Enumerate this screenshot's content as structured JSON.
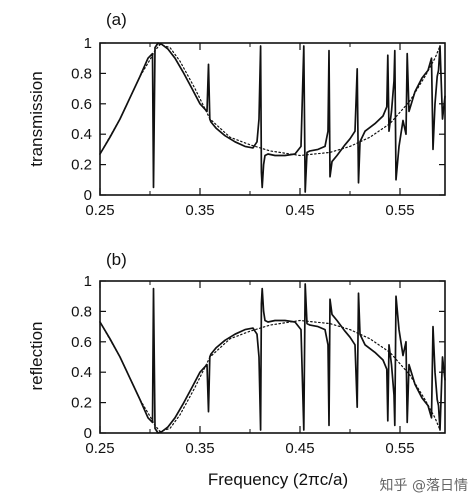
{
  "watermark": "知乎 @落日情",
  "chart_data": [
    {
      "type": "line",
      "panel_label": "(a)",
      "ylabel": "transmission",
      "xlabel": "",
      "xlim": [
        0.25,
        0.595
      ],
      "ylim": [
        0,
        1
      ],
      "xticks": [
        "0.25",
        "0.35",
        "0.45",
        "0.55"
      ],
      "yticks": [
        "0",
        "0.2",
        "0.4",
        "0.6",
        "0.8",
        "1"
      ],
      "grid": false,
      "series": [
        {
          "style": "solid",
          "x": [
            0.25,
            0.26,
            0.27,
            0.28,
            0.29,
            0.298,
            0.3025,
            0.3035,
            0.305,
            0.308,
            0.312,
            0.318,
            0.325,
            0.333,
            0.342,
            0.35,
            0.357,
            0.3585,
            0.3598,
            0.361,
            0.366,
            0.375,
            0.385,
            0.395,
            0.403,
            0.407,
            0.409,
            0.4106,
            0.4114,
            0.4122,
            0.4136,
            0.415,
            0.418,
            0.425,
            0.435,
            0.445,
            0.451,
            0.4538,
            0.4552,
            0.457,
            0.46,
            0.468,
            0.475,
            0.478,
            0.479,
            0.48,
            0.482,
            0.487,
            0.495,
            0.5,
            0.505,
            0.5072,
            0.5085,
            0.51,
            0.515,
            0.525,
            0.533,
            0.5368,
            0.5378,
            0.539,
            0.5415,
            0.544,
            0.5448,
            0.546,
            0.549,
            0.553,
            0.556,
            0.5572,
            0.559,
            0.565,
            0.572,
            0.578,
            0.5815,
            0.583,
            0.585,
            0.5872,
            0.5885,
            0.59,
            0.5925,
            0.595
          ],
          "y": [
            0.27,
            0.38,
            0.5,
            0.64,
            0.78,
            0.9,
            0.93,
            0.05,
            0.97,
            1.0,
            0.99,
            0.96,
            0.9,
            0.81,
            0.7,
            0.6,
            0.55,
            0.86,
            0.5,
            0.48,
            0.44,
            0.39,
            0.35,
            0.32,
            0.31,
            0.35,
            0.5,
            0.98,
            0.15,
            0.05,
            0.2,
            0.26,
            0.27,
            0.26,
            0.26,
            0.27,
            0.32,
            0.98,
            0.02,
            0.28,
            0.29,
            0.3,
            0.32,
            0.42,
            0.95,
            0.12,
            0.22,
            0.26,
            0.33,
            0.37,
            0.42,
            0.83,
            0.08,
            0.35,
            0.42,
            0.47,
            0.52,
            0.58,
            0.92,
            0.42,
            0.55,
            0.75,
            0.95,
            0.1,
            0.32,
            0.49,
            0.4,
            0.93,
            0.55,
            0.68,
            0.77,
            0.82,
            0.9,
            0.3,
            0.6,
            0.78,
            0.82,
            0.98,
            0.5,
            0.65
          ]
        },
        {
          "style": "dotted",
          "x": [
            0.25,
            0.27,
            0.29,
            0.3,
            0.305,
            0.31,
            0.32,
            0.33,
            0.345,
            0.36,
            0.38,
            0.4,
            0.42,
            0.45,
            0.48,
            0.5,
            0.52,
            0.54,
            0.56,
            0.575,
            0.585,
            0.59
          ],
          "y": [
            0.27,
            0.5,
            0.78,
            0.89,
            0.95,
            0.99,
            0.97,
            0.88,
            0.7,
            0.5,
            0.38,
            0.33,
            0.29,
            0.26,
            0.28,
            0.32,
            0.38,
            0.47,
            0.62,
            0.78,
            0.9,
            0.98
          ]
        }
      ]
    },
    {
      "type": "line",
      "panel_label": "(b)",
      "ylabel": "reflection",
      "xlabel": "Frequency (2πc/a)",
      "xlim": [
        0.25,
        0.595
      ],
      "ylim": [
        0,
        1
      ],
      "xticks": [
        "0.25",
        "0.35",
        "0.45",
        "0.55"
      ],
      "yticks": [
        "0",
        "0.2",
        "0.4",
        "0.6",
        "0.8",
        "1"
      ],
      "grid": false,
      "series": [
        {
          "style": "solid",
          "x": [
            0.25,
            0.26,
            0.27,
            0.28,
            0.29,
            0.298,
            0.3025,
            0.3035,
            0.305,
            0.308,
            0.312,
            0.318,
            0.325,
            0.333,
            0.342,
            0.35,
            0.357,
            0.3585,
            0.3598,
            0.361,
            0.366,
            0.375,
            0.385,
            0.395,
            0.403,
            0.407,
            0.409,
            0.4106,
            0.4114,
            0.4122,
            0.4136,
            0.415,
            0.418,
            0.425,
            0.435,
            0.445,
            0.451,
            0.4538,
            0.4552,
            0.457,
            0.46,
            0.468,
            0.475,
            0.478,
            0.479,
            0.48,
            0.482,
            0.487,
            0.495,
            0.5,
            0.505,
            0.5072,
            0.5085,
            0.51,
            0.515,
            0.525,
            0.533,
            0.5368,
            0.5378,
            0.539,
            0.5415,
            0.544,
            0.5448,
            0.546,
            0.549,
            0.553,
            0.556,
            0.5572,
            0.559,
            0.565,
            0.572,
            0.578,
            0.5815,
            0.583,
            0.585,
            0.5872,
            0.5885,
            0.59,
            0.5925,
            0.595
          ],
          "y": [
            0.73,
            0.62,
            0.5,
            0.36,
            0.22,
            0.1,
            0.07,
            0.95,
            0.03,
            0.0,
            0.01,
            0.04,
            0.1,
            0.19,
            0.3,
            0.4,
            0.45,
            0.14,
            0.5,
            0.52,
            0.56,
            0.61,
            0.65,
            0.68,
            0.69,
            0.65,
            0.5,
            0.02,
            0.85,
            0.95,
            0.8,
            0.74,
            0.73,
            0.74,
            0.74,
            0.73,
            0.68,
            0.02,
            0.98,
            0.72,
            0.71,
            0.7,
            0.68,
            0.58,
            0.05,
            0.88,
            0.78,
            0.74,
            0.67,
            0.63,
            0.58,
            0.17,
            0.92,
            0.65,
            0.58,
            0.53,
            0.48,
            0.42,
            0.08,
            0.58,
            0.45,
            0.25,
            0.05,
            0.9,
            0.68,
            0.51,
            0.6,
            0.07,
            0.45,
            0.32,
            0.23,
            0.18,
            0.1,
            0.7,
            0.4,
            0.22,
            0.18,
            0.02,
            0.5,
            0.35
          ]
        },
        {
          "style": "dotted",
          "x": [
            0.25,
            0.27,
            0.29,
            0.3,
            0.305,
            0.31,
            0.32,
            0.33,
            0.345,
            0.36,
            0.38,
            0.4,
            0.42,
            0.45,
            0.48,
            0.5,
            0.52,
            0.54,
            0.56,
            0.575,
            0.585,
            0.59
          ],
          "y": [
            0.73,
            0.5,
            0.22,
            0.11,
            0.05,
            0.01,
            0.03,
            0.12,
            0.3,
            0.5,
            0.62,
            0.67,
            0.71,
            0.74,
            0.72,
            0.68,
            0.62,
            0.53,
            0.38,
            0.22,
            0.1,
            0.02
          ]
        }
      ]
    }
  ]
}
